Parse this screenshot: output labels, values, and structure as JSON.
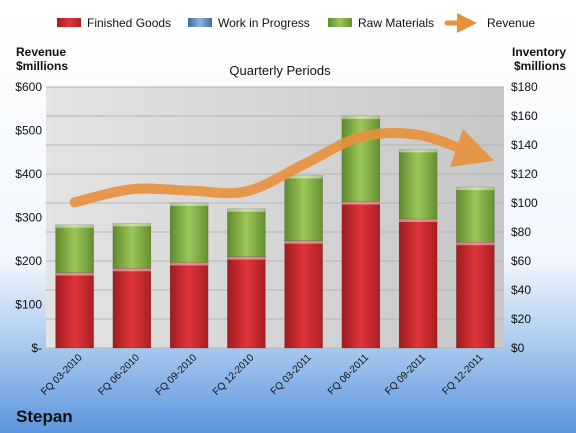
{
  "chart_data": {
    "type": "bar",
    "subtitle": "Quarterly Periods",
    "company": "Stepan",
    "left_axis_label": [
      "Revenue",
      "$millions"
    ],
    "right_axis_label": [
      "Inventory",
      "$millions"
    ],
    "categories": [
      "FQ 03-2010",
      "FQ 06-2010",
      "FQ 09-2010",
      "FQ 12-2010",
      "FQ 03-2011",
      "FQ 06-2011",
      "FQ 09-2011",
      "FQ 12-2011"
    ],
    "left_ticks": [
      "$-",
      "$100",
      "$200",
      "$300",
      "$400",
      "$500",
      "$600"
    ],
    "right_ticks": [
      "$0",
      "$20",
      "$40",
      "$60",
      "$80",
      "$100",
      "$120",
      "$140",
      "$160",
      "$180"
    ],
    "ylim_left": [
      0,
      600
    ],
    "ylim_right": [
      0,
      180
    ],
    "grid": true,
    "legend_position": "top",
    "series": [
      {
        "name": "Finished Goods",
        "kind": "stacked-bar",
        "axis": "right",
        "color": "#C0272D",
        "values": [
          52,
          55,
          59,
          63,
          74,
          101,
          89,
          73
        ]
      },
      {
        "name": "Work in Progress",
        "kind": "stacked-bar",
        "axis": "right",
        "color": "#4F81BD",
        "values": [
          0,
          0,
          0,
          0,
          0,
          0,
          0,
          0
        ]
      },
      {
        "name": "Raw Materials",
        "kind": "stacked-bar",
        "axis": "right",
        "color": "#77A03A",
        "values": [
          33,
          31,
          41,
          33,
          45,
          59,
          48,
          38
        ]
      },
      {
        "name": "Revenue",
        "kind": "line",
        "axis": "left",
        "color": "#E8913C",
        "values": [
          335,
          365,
          362,
          360,
          422,
          485,
          490,
          445
        ]
      }
    ]
  }
}
